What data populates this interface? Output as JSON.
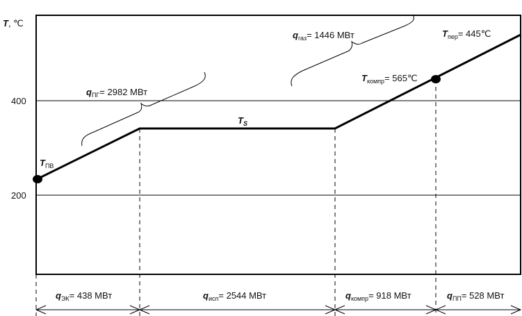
{
  "axis": {
    "y_symbol": "T",
    "y_unit": ", ℃",
    "ticks": [
      "400",
      "200"
    ]
  },
  "labels": {
    "t_pv": {
      "sym": "T",
      "sub": "ПВ"
    },
    "t_s": {
      "sym": "T",
      "sub": "S"
    },
    "t_kompr": {
      "sym": "T",
      "sub": "компр",
      "val": "= 565℃"
    },
    "t_per": {
      "sym": "T",
      "sub": "пер",
      "val": "= 445℃"
    },
    "q_pg": {
      "sym": "q",
      "sub": "ПГ",
      "val": "= 2982 МВт"
    },
    "q_gaz": {
      "sym": "q",
      "sub": "газ",
      "val": "= 1446 МВт"
    }
  },
  "segments": [
    {
      "sym": "q",
      "sub": "ЭК",
      "val": "= 438 МВт"
    },
    {
      "sym": "q",
      "sub": "исп",
      "val": "= 2544 МВт"
    },
    {
      "sym": "q",
      "sub": "компр",
      "val": "= 918 МВт"
    },
    {
      "sym": "q",
      "sub": "ПП",
      "val": "= 528 МВт"
    }
  ]
}
